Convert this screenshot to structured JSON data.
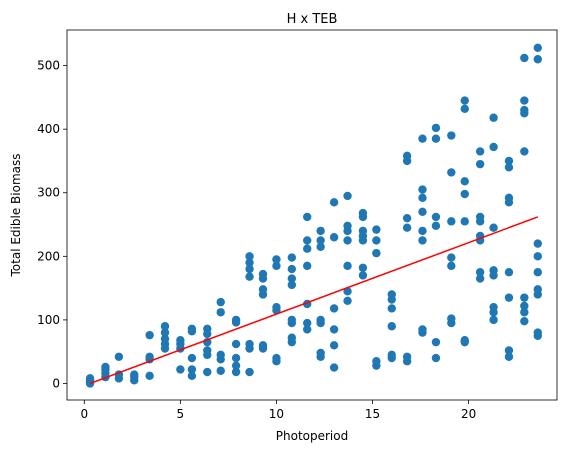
{
  "chart_data": {
    "type": "scatter",
    "title": "H x TEB",
    "xlabel": "Photoperiod",
    "ylabel": "Total Edible Biomass",
    "xlim": [
      -0.9,
      24.6
    ],
    "ylim": [
      -26,
      556
    ],
    "xticks": [
      0,
      5,
      10,
      15,
      20
    ],
    "yticks": [
      0,
      100,
      200,
      300,
      400,
      500
    ],
    "grid": false,
    "colors": {
      "points": "#1f77b4",
      "trend_line": "#ff0000"
    },
    "trend_line": {
      "x": [
        0.3,
        23.6
      ],
      "y": [
        0,
        262
      ]
    },
    "points": [
      [
        0.3,
        2
      ],
      [
        0.3,
        5
      ],
      [
        0.3,
        8
      ],
      [
        0.3,
        0
      ],
      [
        1.1,
        10
      ],
      [
        1.1,
        16
      ],
      [
        1.1,
        22
      ],
      [
        1.1,
        26
      ],
      [
        1.8,
        8
      ],
      [
        1.8,
        14
      ],
      [
        1.8,
        42
      ],
      [
        2.6,
        5
      ],
      [
        2.6,
        10
      ],
      [
        2.6,
        14
      ],
      [
        3.4,
        12
      ],
      [
        3.4,
        38
      ],
      [
        3.4,
        42
      ],
      [
        3.4,
        76
      ],
      [
        4.2,
        55
      ],
      [
        4.2,
        62
      ],
      [
        4.2,
        70
      ],
      [
        4.2,
        80
      ],
      [
        4.2,
        90
      ],
      [
        5.0,
        22
      ],
      [
        5.0,
        55
      ],
      [
        5.0,
        62
      ],
      [
        5.0,
        68
      ],
      [
        5.6,
        12
      ],
      [
        5.6,
        22
      ],
      [
        5.6,
        40
      ],
      [
        5.6,
        82
      ],
      [
        5.6,
        86
      ],
      [
        6.4,
        18
      ],
      [
        6.4,
        45
      ],
      [
        6.4,
        52
      ],
      [
        6.4,
        65
      ],
      [
        6.4,
        78
      ],
      [
        6.4,
        86
      ],
      [
        7.1,
        20
      ],
      [
        7.1,
        38
      ],
      [
        7.1,
        45
      ],
      [
        7.1,
        112
      ],
      [
        7.1,
        128
      ],
      [
        7.9,
        18
      ],
      [
        7.9,
        28
      ],
      [
        7.9,
        40
      ],
      [
        7.9,
        62
      ],
      [
        7.9,
        96
      ],
      [
        7.9,
        100
      ],
      [
        8.6,
        18
      ],
      [
        8.6,
        55
      ],
      [
        8.6,
        62
      ],
      [
        8.6,
        168
      ],
      [
        8.6,
        180
      ],
      [
        8.6,
        190
      ],
      [
        8.6,
        200
      ],
      [
        9.3,
        55
      ],
      [
        9.3,
        60
      ],
      [
        9.3,
        140
      ],
      [
        9.3,
        148
      ],
      [
        9.3,
        165
      ],
      [
        9.3,
        172
      ],
      [
        10.0,
        35
      ],
      [
        10.0,
        40
      ],
      [
        10.0,
        115
      ],
      [
        10.0,
        120
      ],
      [
        10.0,
        185
      ],
      [
        10.0,
        195
      ],
      [
        10.8,
        65
      ],
      [
        10.8,
        72
      ],
      [
        10.8,
        95
      ],
      [
        10.8,
        100
      ],
      [
        10.8,
        155
      ],
      [
        10.8,
        165
      ],
      [
        10.8,
        180
      ],
      [
        10.8,
        198
      ],
      [
        11.6,
        85
      ],
      [
        11.6,
        95
      ],
      [
        11.6,
        125
      ],
      [
        11.6,
        185
      ],
      [
        11.6,
        212
      ],
      [
        11.6,
        225
      ],
      [
        11.6,
        262
      ],
      [
        12.3,
        42
      ],
      [
        12.3,
        48
      ],
      [
        12.3,
        95
      ],
      [
        12.3,
        100
      ],
      [
        12.3,
        215
      ],
      [
        12.3,
        225
      ],
      [
        12.3,
        240
      ],
      [
        13.0,
        25
      ],
      [
        13.0,
        60
      ],
      [
        13.0,
        85
      ],
      [
        13.0,
        118
      ],
      [
        13.0,
        230
      ],
      [
        13.0,
        285
      ],
      [
        13.7,
        130
      ],
      [
        13.7,
        145
      ],
      [
        13.7,
        185
      ],
      [
        13.7,
        225
      ],
      [
        13.7,
        240
      ],
      [
        13.7,
        248
      ],
      [
        13.7,
        295
      ],
      [
        14.5,
        170
      ],
      [
        14.5,
        182
      ],
      [
        14.5,
        225
      ],
      [
        14.5,
        232
      ],
      [
        14.5,
        240
      ],
      [
        14.5,
        262
      ],
      [
        14.5,
        268
      ],
      [
        15.2,
        28
      ],
      [
        15.2,
        35
      ],
      [
        15.2,
        205
      ],
      [
        15.2,
        225
      ],
      [
        15.2,
        242
      ],
      [
        16.0,
        40
      ],
      [
        16.0,
        45
      ],
      [
        16.0,
        90
      ],
      [
        16.0,
        118
      ],
      [
        16.0,
        132
      ],
      [
        16.0,
        140
      ],
      [
        16.8,
        35
      ],
      [
        16.8,
        42
      ],
      [
        16.8,
        245
      ],
      [
        16.8,
        260
      ],
      [
        16.8,
        350
      ],
      [
        16.8,
        358
      ],
      [
        17.6,
        80
      ],
      [
        17.6,
        85
      ],
      [
        17.6,
        225
      ],
      [
        17.6,
        240
      ],
      [
        17.6,
        270
      ],
      [
        17.6,
        292
      ],
      [
        17.6,
        305
      ],
      [
        17.6,
        385
      ],
      [
        18.3,
        40
      ],
      [
        18.3,
        65
      ],
      [
        18.3,
        248
      ],
      [
        18.3,
        262
      ],
      [
        18.3,
        385
      ],
      [
        18.3,
        402
      ],
      [
        19.1,
        95
      ],
      [
        19.1,
        102
      ],
      [
        19.1,
        185
      ],
      [
        19.1,
        198
      ],
      [
        19.1,
        255
      ],
      [
        19.1,
        332
      ],
      [
        19.1,
        390
      ],
      [
        19.8,
        65
      ],
      [
        19.8,
        68
      ],
      [
        19.8,
        255
      ],
      [
        19.8,
        298
      ],
      [
        19.8,
        318
      ],
      [
        19.8,
        432
      ],
      [
        19.8,
        445
      ],
      [
        20.6,
        165
      ],
      [
        20.6,
        175
      ],
      [
        20.6,
        225
      ],
      [
        20.6,
        232
      ],
      [
        20.6,
        255
      ],
      [
        20.6,
        262
      ],
      [
        20.6,
        345
      ],
      [
        20.6,
        365
      ],
      [
        21.3,
        100
      ],
      [
        21.3,
        112
      ],
      [
        21.3,
        120
      ],
      [
        21.3,
        170
      ],
      [
        21.3,
        178
      ],
      [
        21.3,
        245
      ],
      [
        21.3,
        372
      ],
      [
        21.3,
        418
      ],
      [
        22.1,
        42
      ],
      [
        22.1,
        52
      ],
      [
        22.1,
        135
      ],
      [
        22.1,
        175
      ],
      [
        22.1,
        285
      ],
      [
        22.1,
        292
      ],
      [
        22.1,
        340
      ],
      [
        22.1,
        350
      ],
      [
        22.9,
        98
      ],
      [
        22.9,
        112
      ],
      [
        22.9,
        122
      ],
      [
        22.9,
        135
      ],
      [
        22.9,
        365
      ],
      [
        22.9,
        425
      ],
      [
        22.9,
        430
      ],
      [
        22.9,
        445
      ],
      [
        22.9,
        512
      ],
      [
        23.6,
        75
      ],
      [
        23.6,
        80
      ],
      [
        23.6,
        140
      ],
      [
        23.6,
        148
      ],
      [
        23.6,
        175
      ],
      [
        23.6,
        200
      ],
      [
        23.6,
        220
      ],
      [
        23.6,
        510
      ],
      [
        23.6,
        528
      ]
    ]
  }
}
